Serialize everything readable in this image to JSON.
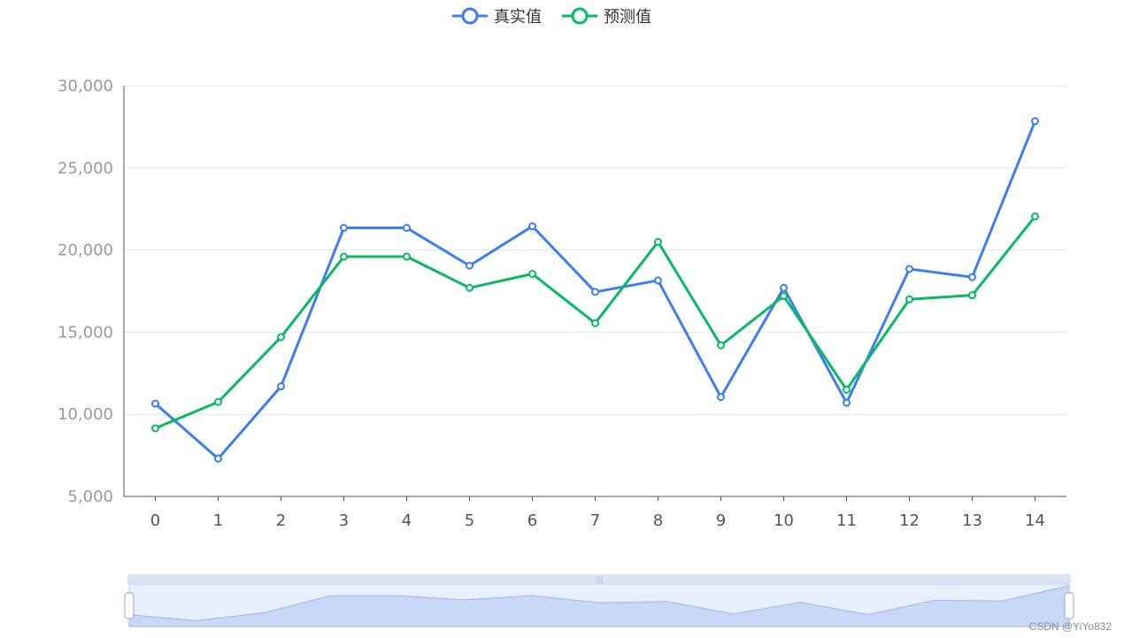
{
  "chart_data": {
    "type": "line",
    "x": [
      0,
      1,
      2,
      3,
      4,
      5,
      6,
      7,
      8,
      9,
      10,
      11,
      12,
      13,
      14
    ],
    "ylim": [
      5000,
      30000
    ],
    "yticks": [
      5000,
      10000,
      15000,
      20000,
      25000,
      30000
    ],
    "ytick_labels": [
      "5,000",
      "10,000",
      "15,000",
      "20,000",
      "25,000",
      "30,000"
    ],
    "grid": true,
    "legend_position": "top-center",
    "series": [
      {
        "name": "真实值",
        "color": "#3d7ef2",
        "values": [
          10650,
          7300,
          11700,
          21350,
          21350,
          19050,
          21450,
          17450,
          18150,
          11050,
          17700,
          10700,
          18850,
          18350,
          27850
        ]
      },
      {
        "name": "预测值",
        "color": "#07bb63",
        "values": [
          9150,
          10750,
          14700,
          19600,
          19600,
          17700,
          18550,
          15550,
          20500,
          14200,
          17200,
          11500,
          17000,
          17250,
          22050
        ]
      }
    ],
    "datazoom": {
      "start_percent": 0,
      "end_percent": 100
    }
  },
  "watermark": "CSDN @YiYo832"
}
